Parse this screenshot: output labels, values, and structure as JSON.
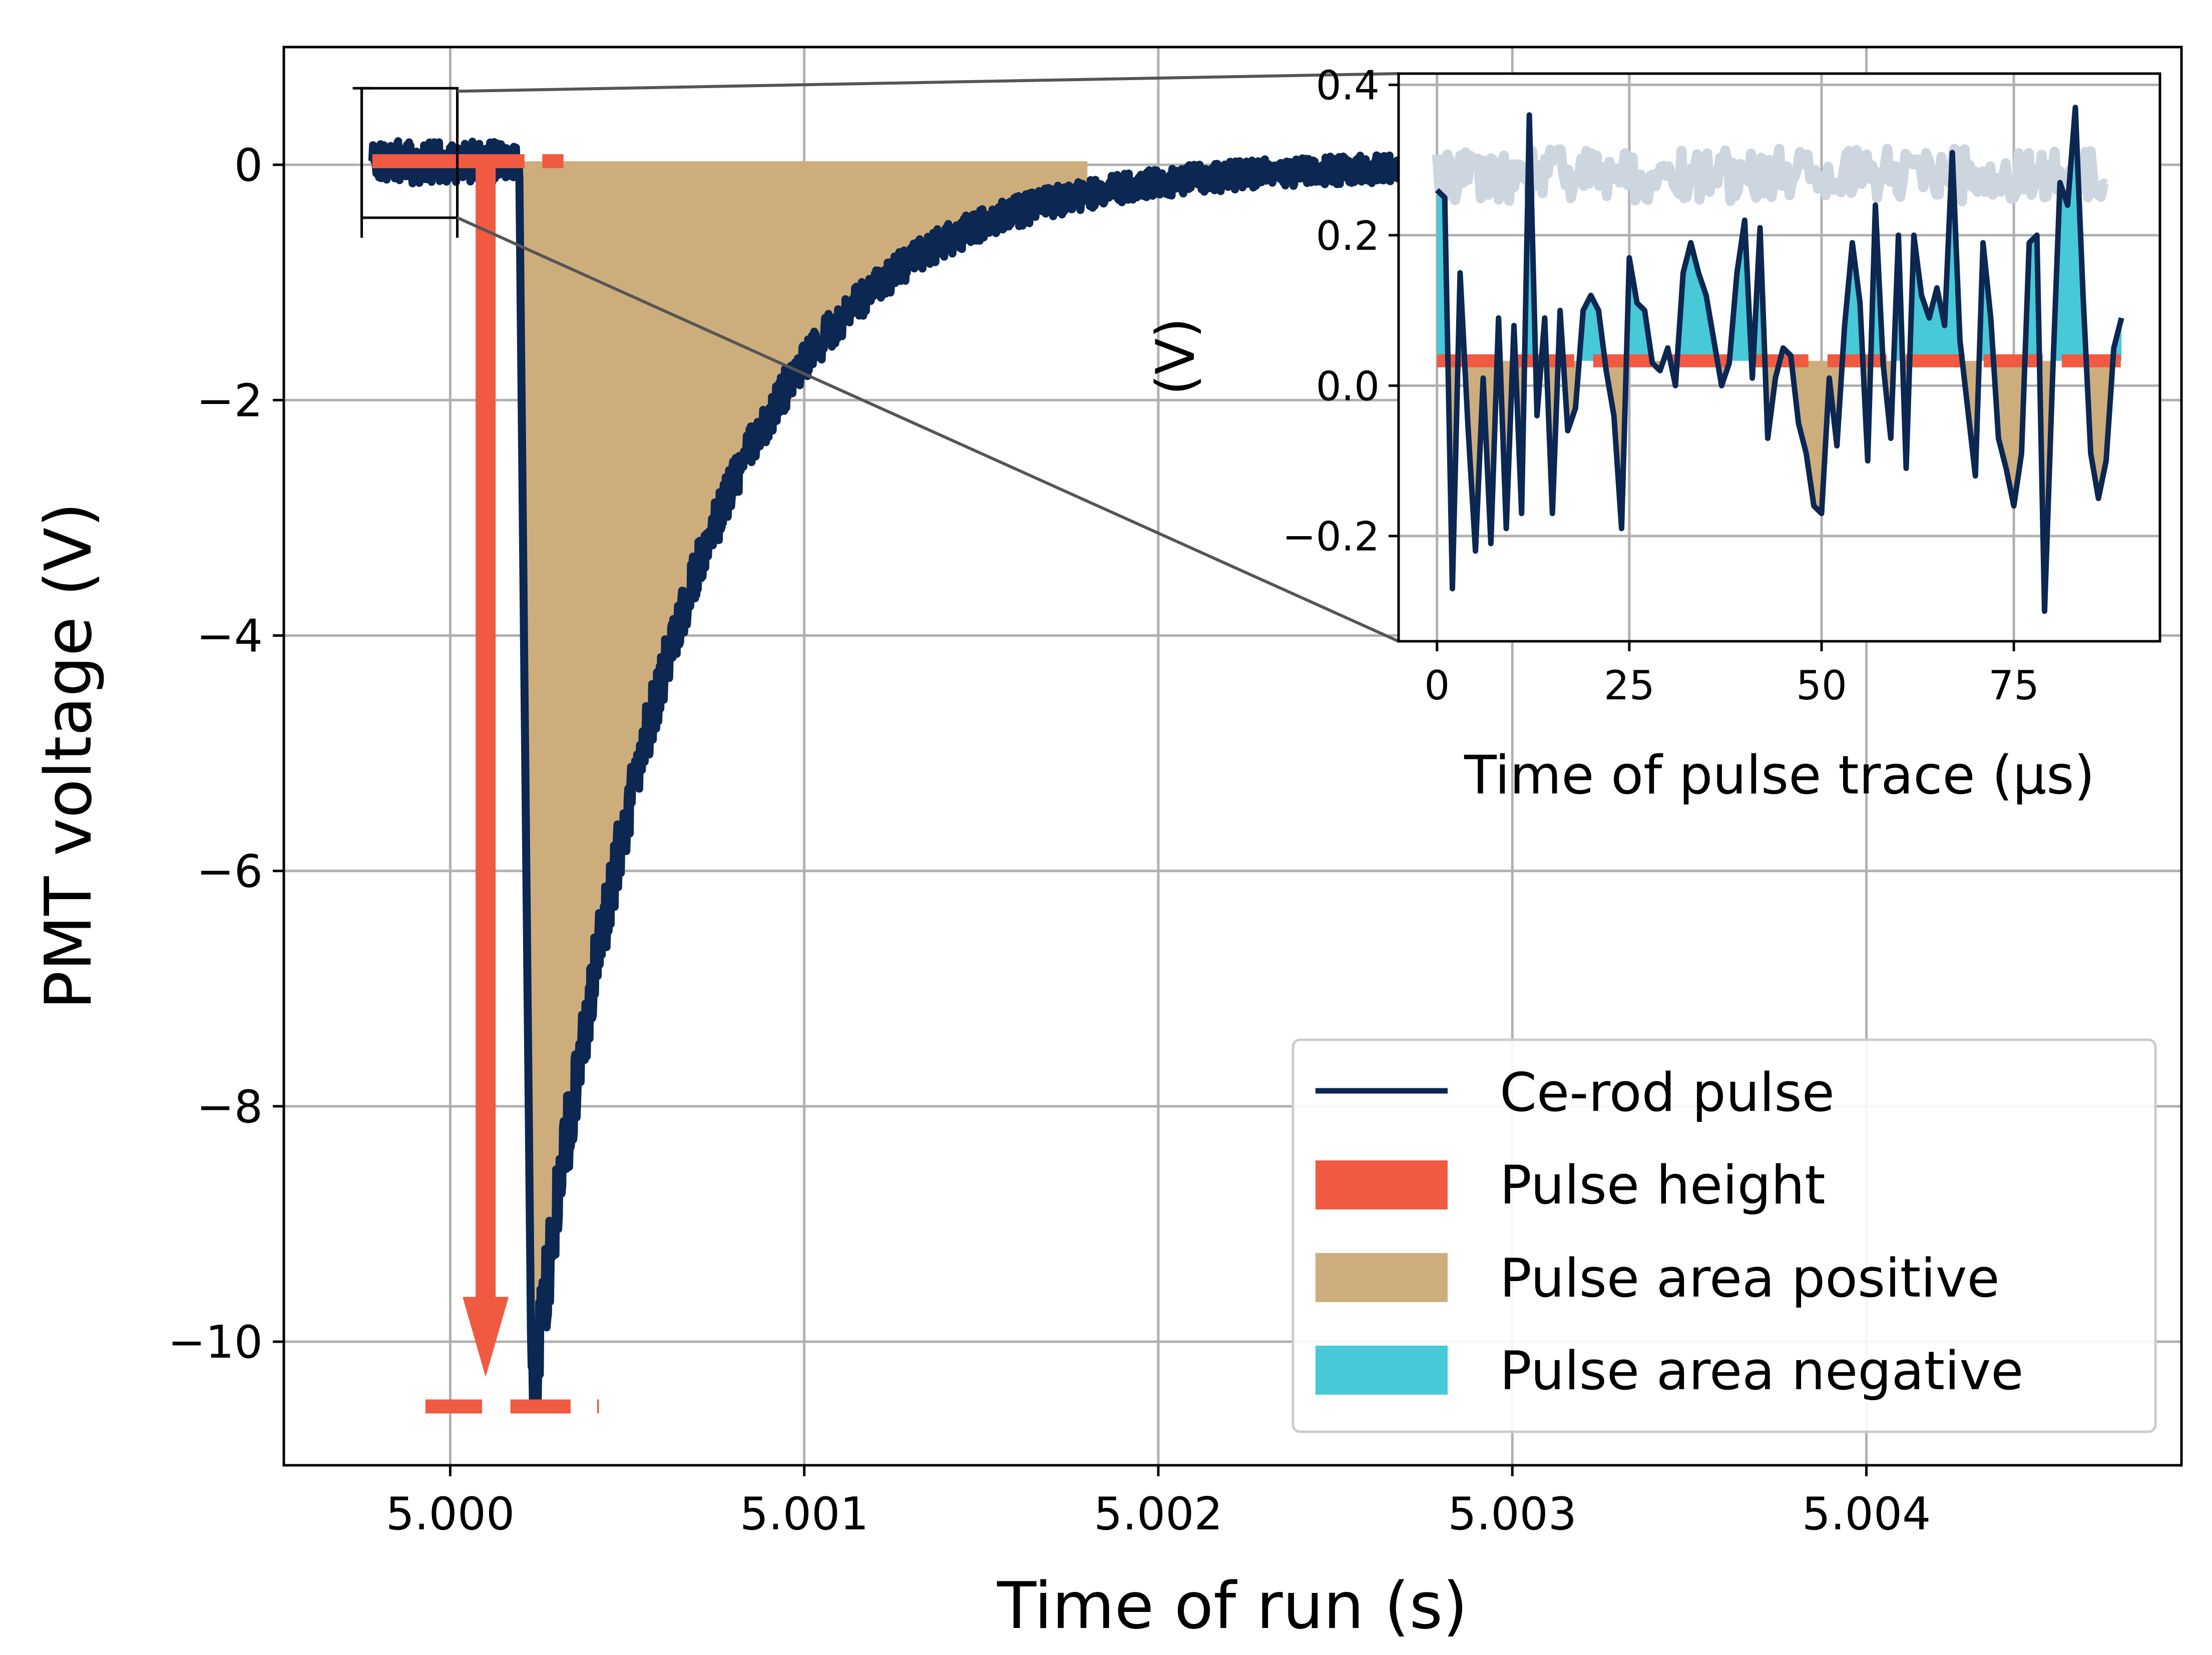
{
  "chart_data": [
    {
      "type": "line",
      "xlabel": "Time of run (s)",
      "ylabel": "PMT voltage (V)",
      "xlim": [
        4.99953,
        5.00489
      ],
      "ylim": [
        -11.05,
        1.0
      ],
      "xticks": [
        "5.000",
        "5.001",
        "5.002",
        "5.003",
        "5.004"
      ],
      "xtick_values": [
        5.0,
        5.001,
        5.002,
        5.003,
        5.004
      ],
      "yticks": [
        "0",
        "−2",
        "−4",
        "−6",
        "−8",
        "−10"
      ],
      "ytick_values": [
        0,
        -2,
        -4,
        -6,
        -8,
        -10
      ],
      "grid": true,
      "series": [
        {
          "name": "Ce-rod pulse",
          "description": "noisy baseline near 0 V until ~5.0002 s, sharp drop to ~-10.5 V, exponential recovery toward 0 V",
          "baseline_end": 5.000195,
          "peak_time": 5.00023,
          "peak_value": -10.5,
          "decay_tau": 0.00042,
          "noise_amplitude": 0.12,
          "end": 5.00478
        }
      ],
      "pulse_height": {
        "baseline_level": 0.03,
        "baseline_segments": [
          [
            4.99978,
            5.00021
          ],
          [
            5.00026,
            5.00032
          ]
        ],
        "peak_level": -10.55,
        "peak_segments": [
          [
            4.99993,
            5.00009
          ],
          [
            5.00017,
            5.00034
          ],
          [
            5.000415,
            5.00042
          ]
        ],
        "arrow_x": 5.0001,
        "arrow_from": 0.0,
        "arrow_to": -10.3
      },
      "area_region": [
        5.000195,
        5.0018
      ],
      "zoom_box": {
        "x": [
          4.99975,
          5.00002
        ],
        "y": [
          -0.45,
          0.65
        ]
      },
      "legend": {
        "placement": "lower-right",
        "entries": [
          "Ce-rod pulse",
          "Pulse height",
          "Pulse area positive",
          "Pulse area negative"
        ]
      }
    },
    {
      "type": "line",
      "role": "inset",
      "xlabel": "Time of pulse trace (μs)",
      "ylabel": "(V)",
      "xlim": [
        -5,
        94
      ],
      "ylim": [
        -0.34,
        0.415
      ],
      "xticks": [
        "0",
        "25",
        "50",
        "75"
      ],
      "xtick_values": [
        0,
        25,
        50,
        75
      ],
      "yticks": [
        "−0.2",
        "0.0",
        "0.2",
        "0.4"
      ],
      "ytick_values": [
        -0.2,
        0.0,
        0.2,
        0.4
      ],
      "grid": true,
      "threshold": 0.033,
      "background_band": {
        "x": [
          0,
          87
        ],
        "center": 0.28,
        "amplitude": 0.035
      },
      "series": [
        {
          "name": "Ce-rod pulse",
          "x": [
            0,
            1,
            2,
            3,
            4,
            5,
            6,
            7,
            8,
            9,
            10,
            11,
            12,
            13,
            14,
            15,
            16,
            17,
            18,
            19,
            20,
            21,
            22,
            23,
            24,
            25,
            26,
            27,
            28,
            29,
            30,
            31,
            32,
            33,
            34,
            35,
            36,
            37,
            38,
            39,
            40,
            41,
            42,
            43,
            44,
            45,
            46,
            47,
            48,
            49,
            50,
            51,
            52,
            53,
            54,
            55,
            56,
            57,
            58,
            59,
            60,
            61,
            62,
            63,
            64,
            65,
            66,
            67,
            68,
            69,
            70,
            71,
            72,
            73,
            74,
            75,
            76,
            77,
            78,
            79,
            80,
            81,
            82,
            83,
            84,
            85,
            86,
            87,
            88,
            89
          ],
          "y": [
            0.26,
            0.25,
            -0.27,
            0.15,
            -0.05,
            -0.22,
            0.01,
            -0.21,
            0.09,
            -0.19,
            0.08,
            -0.17,
            0.36,
            -0.04,
            0.09,
            -0.17,
            0.1,
            -0.06,
            -0.03,
            0.1,
            0.12,
            0.1,
            0.02,
            -0.04,
            -0.19,
            0.17,
            0.11,
            0.1,
            0.03,
            0.02,
            0.05,
            0.0,
            0.15,
            0.19,
            0.15,
            0.12,
            0.06,
            0.0,
            0.03,
            0.15,
            0.22,
            0.01,
            0.21,
            -0.07,
            0.01,
            0.05,
            0.04,
            -0.05,
            -0.09,
            -0.16,
            -0.17,
            0.01,
            -0.08,
            0.08,
            0.19,
            0.11,
            -0.1,
            0.24,
            0.03,
            -0.07,
            0.2,
            -0.11,
            0.2,
            0.12,
            0.09,
            0.13,
            0.08,
            0.31,
            0.06,
            -0.03,
            -0.12,
            0.19,
            0.09,
            -0.07,
            -0.11,
            -0.16,
            -0.09,
            0.19,
            0.2,
            -0.3,
            0.0,
            0.27,
            0.24,
            0.37,
            0.12,
            -0.09,
            -0.15,
            -0.1,
            0.05,
            0.09
          ]
        }
      ]
    }
  ]
}
